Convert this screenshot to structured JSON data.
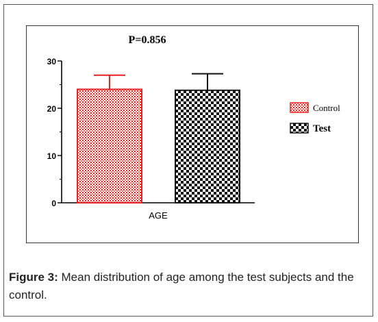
{
  "figure": {
    "caption_label": "Figure 3:",
    "caption_text": " Mean distribution of age among the test subjects and the control."
  },
  "chart_data": {
    "type": "bar",
    "annotation": "P=0.856",
    "categories": [
      "AGE"
    ],
    "series": [
      {
        "name": "Control",
        "values": [
          24
        ],
        "error": [
          3
        ],
        "color": "#e82020",
        "pattern": "fine-crosshatch"
      },
      {
        "name": "Test",
        "values": [
          23.8
        ],
        "error": [
          3.5
        ],
        "color": "#111111",
        "pattern": "checkerboard"
      }
    ],
    "xlabel": "",
    "ylabel": "",
    "ylim": [
      0,
      30
    ],
    "yticks": [
      "0",
      "10",
      "20",
      "30"
    ],
    "legend_position": "right",
    "grid": false
  }
}
